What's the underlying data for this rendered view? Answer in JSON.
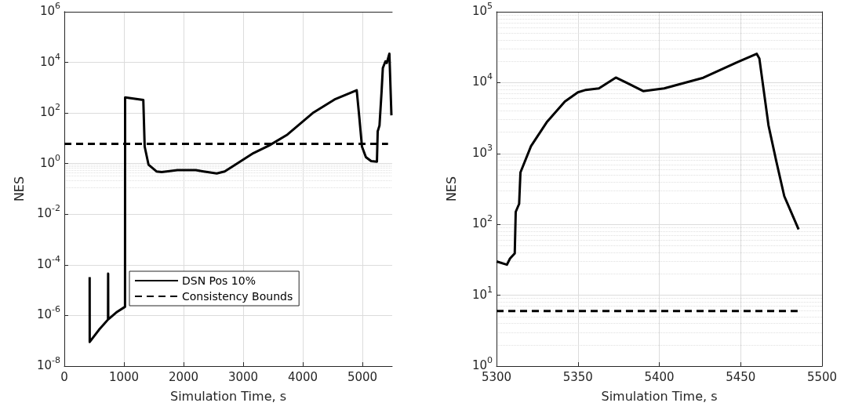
{
  "chart_data": [
    {
      "type": "line",
      "xlabel": "Simulation Time, s",
      "ylabel": "NES",
      "log": "y",
      "grid": true,
      "legend": "bottom",
      "marker": "none",
      "xlim": [
        0,
        5500
      ],
      "xticks": [
        0,
        1000,
        2000,
        3000,
        4000,
        5000
      ],
      "ylim": [
        1e-08,
        1000000.0
      ],
      "yticks": [
        {
          "value": 1e-08,
          "label": "10$^{-8}$"
        },
        {
          "value": 1e-06,
          "label": "10$^{-6}$"
        },
        {
          "value": 0.0001,
          "label": "10$^{-4}$"
        },
        {
          "value": 0.01,
          "label": "10$^{-2}$"
        },
        {
          "value": 1,
          "label": "10$^{0}$"
        },
        {
          "value": 100,
          "label": "10$^{2}$"
        },
        {
          "value": 10000,
          "label": "10$^{4}$"
        },
        {
          "value": 1000000,
          "label": "10$^{6}$"
        }
      ],
      "series": [
        {
          "name": "DSN Pos 10%",
          "color": "#000000",
          "line_style": "solid",
          "x": [
            425,
            426,
            580,
            733,
            735,
            737,
            887,
            1018,
            1020,
            1325,
            1348,
            1413,
            1546,
            1633,
            1897,
            2205,
            2337,
            2557,
            2689,
            2865,
            3172,
            3435,
            3742,
            4181,
            4532,
            4905,
            4949,
            4993,
            5059,
            5147,
            5244,
            5257,
            5287,
            5322,
            5343,
            5387,
            5409,
            5453,
            5487
          ],
          "values": [
            3.3e-05,
            9e-08,
            2.7e-07,
            6.9e-07,
            4.5e-05,
            7e-07,
            1.4e-06,
            2.2e-06,
            410,
            330,
            4.7,
            0.9,
            0.49,
            0.46,
            0.55,
            0.55,
            0.49,
            0.41,
            0.49,
            0.9,
            2.6,
            5.2,
            14,
            105,
            340,
            790,
            65,
            4.7,
            1.8,
            1.26,
            1.2,
            19,
            32,
            700,
            6000,
            11000,
            9500,
            22000,
            81
          ]
        },
        {
          "name": "Consistency Bounds",
          "color": "#000000",
          "line_style": "dashed",
          "x": [
            0,
            5430
          ],
          "values": [
            6,
            6
          ]
        }
      ]
    },
    {
      "type": "line",
      "xlabel": "Simulation Time, s",
      "ylabel": "NES",
      "log": "y",
      "grid": true,
      "marker": "none",
      "xlim": [
        5300,
        5500
      ],
      "xticks": [
        5300,
        5350,
        5400,
        5450,
        5500
      ],
      "ylim": [
        1,
        100000
      ],
      "yticks": [
        {
          "value": 1,
          "label": "10$^{0}$"
        },
        {
          "value": 10,
          "label": "10$^{1}$"
        },
        {
          "value": 100,
          "label": "10$^{2}$"
        },
        {
          "value": 1000,
          "label": "10$^{3}$"
        },
        {
          "value": 10000,
          "label": "10$^{4}$"
        },
        {
          "value": 100000,
          "label": "10$^{5}$"
        }
      ],
      "series": [
        {
          "color": "#000000",
          "line_style": "solid",
          "x": [
            5300,
            5306.4,
            5308.3,
            5311.2,
            5311.8,
            5313.9,
            5314.7,
            5321.2,
            5330.8,
            5342,
            5350,
            5354.9,
            5362.9,
            5373.3,
            5380.5,
            5390.1,
            5403,
            5427,
            5447.9,
            5459.9,
            5461.5,
            5467.1,
            5472,
            5476.8,
            5485.6
          ],
          "values": [
            30,
            27,
            33,
            39,
            150,
            195,
            540,
            1270,
            2750,
            5400,
            7300,
            7900,
            8300,
            11800,
            9800,
            7600,
            8300,
            11700,
            19400,
            25500,
            21900,
            2500,
            760,
            250,
            85
          ]
        },
        {
          "color": "#000000",
          "line_style": "dashed",
          "x": [
            5300,
            5485
          ],
          "values": [
            6,
            6
          ]
        }
      ]
    }
  ]
}
